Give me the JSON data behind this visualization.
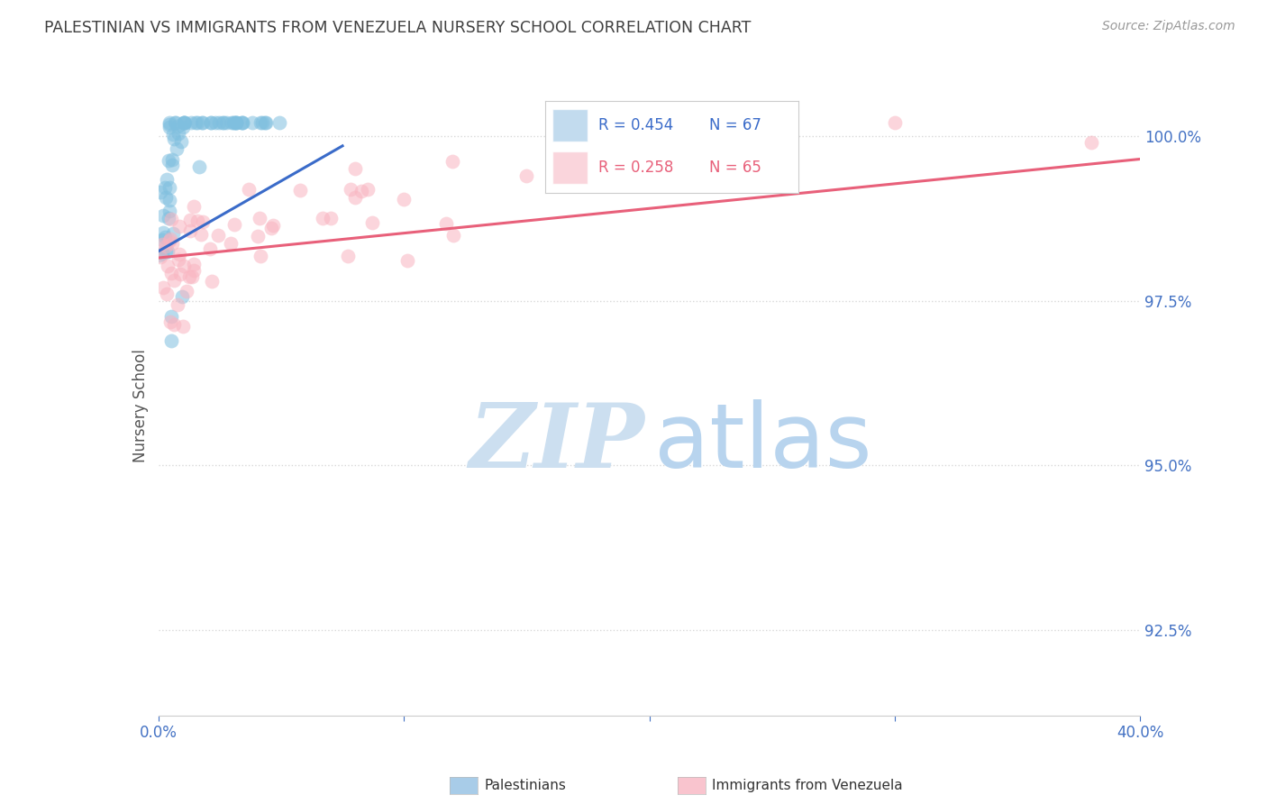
{
  "title": "PALESTINIAN VS IMMIGRANTS FROM VENEZUELA NURSERY SCHOOL CORRELATION CHART",
  "source": "Source: ZipAtlas.com",
  "ylabel": "Nursery School",
  "ytick_labels": [
    "100.0%",
    "97.5%",
    "95.0%",
    "92.5%"
  ],
  "ytick_values": [
    1.0,
    0.975,
    0.95,
    0.925
  ],
  "legend_blue_r": "R = 0.454",
  "legend_blue_n": "N = 67",
  "legend_pink_r": "R = 0.258",
  "legend_pink_n": "N = 65",
  "blue_scatter_color": "#7fbfdf",
  "pink_scatter_color": "#f9b4c0",
  "blue_line_color": "#3a6bc9",
  "pink_line_color": "#e8607a",
  "blue_legend_color": "#a8cce8",
  "pink_legend_color": "#f9c4ce",
  "watermark_zip_color": "#ccdff0",
  "watermark_atlas_color": "#b8d4ee",
  "title_color": "#404040",
  "source_color": "#999999",
  "axis_tick_color": "#4472c4",
  "grid_color": "#d8d8d8",
  "xlim": [
    0.0,
    0.4
  ],
  "ylim": [
    0.912,
    1.006
  ],
  "blue_line_x": [
    0.0,
    0.075
  ],
  "blue_line_y": [
    0.9825,
    0.9985
  ],
  "pink_line_x": [
    0.0,
    0.4
  ],
  "pink_line_y": [
    0.9815,
    0.9965
  ]
}
